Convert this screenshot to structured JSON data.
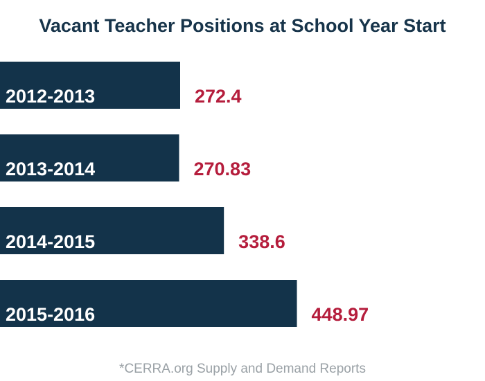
{
  "colors": {
    "bar": "#13334a",
    "value_label": "#b51d3c",
    "category_label": "#ffffff",
    "title": "#17344a",
    "source": "#9aa1a6"
  },
  "chart_data": {
    "type": "bar",
    "orientation": "horizontal",
    "title": "Vacant Teacher Positions at School Year Start",
    "categories": [
      "2012-2013",
      "2013-2014",
      "2014-2015",
      "2015-2016"
    ],
    "values": [
      272.4,
      270.83,
      338.6,
      448.97
    ],
    "value_labels": [
      "272.4",
      "270.83",
      "338.6",
      "448.97"
    ],
    "xlabel": "",
    "ylabel": "",
    "grid": false,
    "legend": "none",
    "source_note": "*CERRA.org Supply and Demand Reports"
  }
}
